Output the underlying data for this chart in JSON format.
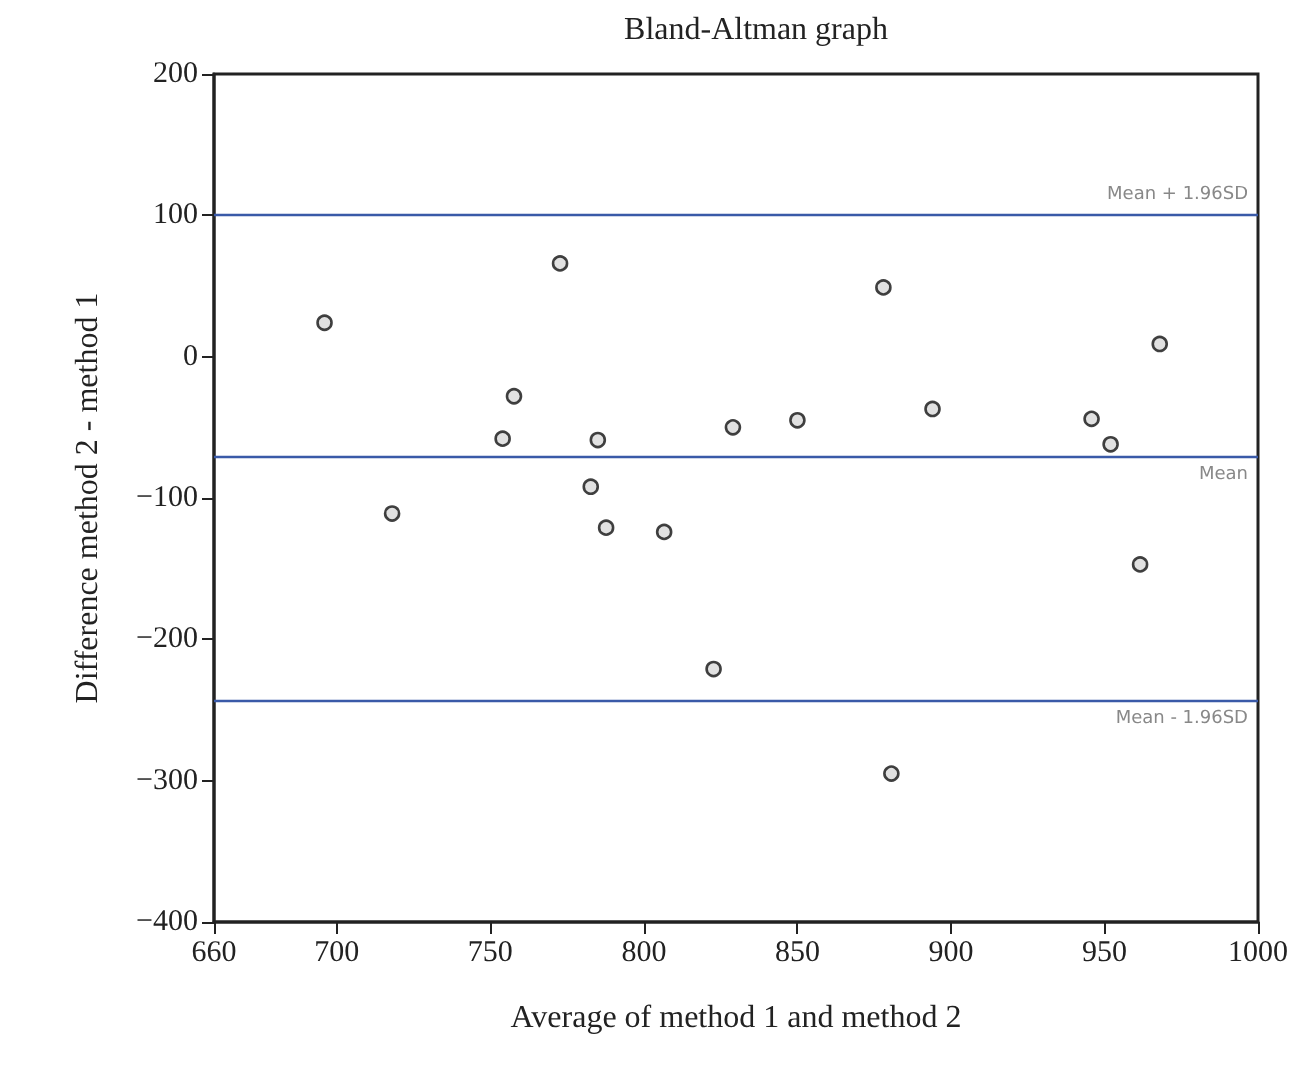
{
  "chart_data": {
    "type": "scatter",
    "title": "Bland-Altman graph",
    "xlabel": "Average of method 1 and method 2",
    "ylabel": "Difference method 2 - method 1",
    "x": [
      696,
      718,
      754,
      757.7,
      772.7,
      782.7,
      785,
      787.7,
      806.6,
      822.7,
      829,
      850,
      878,
      880.6,
      894,
      945.8,
      952,
      961.6,
      968
    ],
    "values": [
      24,
      -111,
      -58,
      -28,
      66,
      -92,
      -59,
      -121,
      -124,
      -221,
      -50,
      -45,
      49,
      -295,
      -37,
      -44,
      -62,
      -147,
      9
    ],
    "color": "#d9d9d9",
    "marker": "circle",
    "grid": false,
    "xlim": [
      660,
      1000
    ],
    "xticks": [
      660,
      700,
      750,
      800,
      850,
      900,
      950,
      1000
    ],
    "ylim": [
      -400,
      200
    ],
    "yticks": [
      {
        "value": -400,
        "label": "−400"
      },
      {
        "value": -300,
        "label": "−300"
      },
      {
        "value": -200,
        "label": "−200"
      },
      {
        "value": -100,
        "label": "−100"
      },
      0,
      100,
      200
    ],
    "ref_lines": [
      {
        "axis": "y",
        "value": 101,
        "label": "Mean + 1.96SD",
        "color": "#3a5aa8"
      },
      {
        "axis": "y",
        "value": -70,
        "label": "Mean",
        "color": "#3a5aa8"
      },
      {
        "axis": "y",
        "value": -243,
        "label": "Mean - 1.96SD",
        "color": "#3a5aa8"
      }
    ]
  }
}
